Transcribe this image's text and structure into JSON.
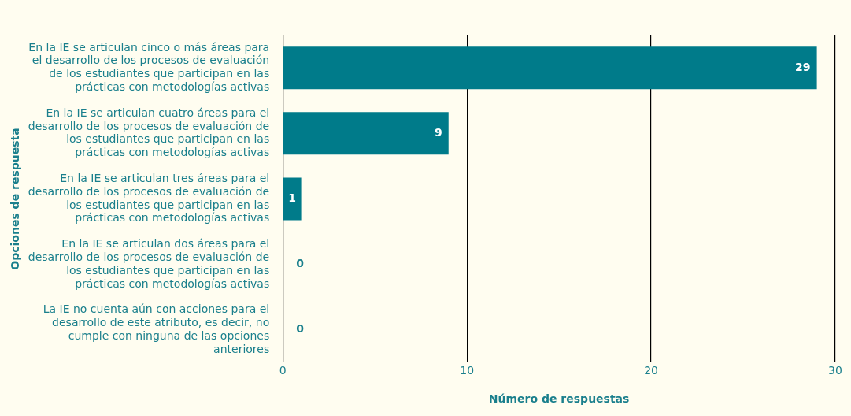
{
  "chart_data": {
    "type": "bar",
    "orientation": "horizontal",
    "xlabel": "Número de respuestas",
    "ylabel": "Opciones de respuesta",
    "categories": [
      "En la IE se articulan cinco o más áreas para el desarrollo de los procesos de evaluación de los estudiantes que participan en las prácticas con metodologías activas",
      "En la IE se articulan cuatro áreas para el desarrollo de los procesos de evaluación de los estudiantes que participan en las prácticas con metodologías activas",
      "En la IE se articulan tres áreas para el desarrollo de los procesos de evaluación de los estudiantes que participan en las prácticas con metodologías activas",
      "En la IE se articulan dos áreas para el desarrollo de los procesos de evaluación de los estudiantes que participan en las prácticas con metodologías activas",
      "La IE no cuenta aún con acciones para el desarrollo de este atributo, es decir, no cumple con ninguna de las opciones anteriores"
    ],
    "values": [
      29,
      9,
      1,
      0,
      0
    ],
    "color": "#007b8a",
    "xlim": [
      0,
      30
    ],
    "xticks": [
      0,
      10,
      20,
      30
    ],
    "grid": "x",
    "data_labels": true,
    "legend": false
  }
}
